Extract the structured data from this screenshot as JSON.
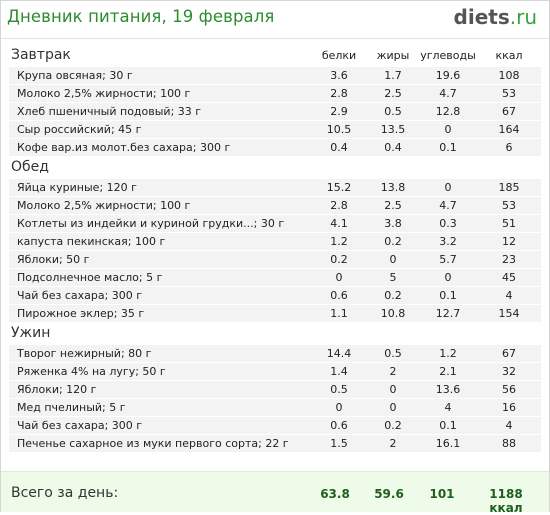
{
  "header": {
    "title": "Дневник питания, 19 февраля",
    "logo_main": "diets",
    "logo_suffix": ".ru"
  },
  "columns": [
    "белки",
    "жиры",
    "углеводы",
    "ккал"
  ],
  "sections": [
    {
      "name": "Завтрак",
      "items": [
        {
          "name": "Крупа овсяная; 30 г",
          "protein": "3.6",
          "fat": "1.7",
          "carbs": "19.6",
          "kcal": "108"
        },
        {
          "name": "Молоко 2,5% жирности; 100 г",
          "protein": "2.8",
          "fat": "2.5",
          "carbs": "4.7",
          "kcal": "53"
        },
        {
          "name": "Хлеб пшеничный подовый; 33 г",
          "protein": "2.9",
          "fat": "0.5",
          "carbs": "12.8",
          "kcal": "67"
        },
        {
          "name": "Сыр российский; 45 г",
          "protein": "10.5",
          "fat": "13.5",
          "carbs": "0",
          "kcal": "164"
        },
        {
          "name": "Кофе вар.из молот.без сахара; 300 г",
          "protein": "0.4",
          "fat": "0.4",
          "carbs": "0.1",
          "kcal": "6"
        }
      ]
    },
    {
      "name": "Обед",
      "items": [
        {
          "name": "Яйца куриные; 120 г",
          "protein": "15.2",
          "fat": "13.8",
          "carbs": "0",
          "kcal": "185"
        },
        {
          "name": "Молоко 2,5% жирности; 100 г",
          "protein": "2.8",
          "fat": "2.5",
          "carbs": "4.7",
          "kcal": "53"
        },
        {
          "name": "Котлеты из индейки и куриной грудки...; 30 г",
          "protein": "4.1",
          "fat": "3.8",
          "carbs": "0.3",
          "kcal": "51"
        },
        {
          "name": "капуста пекинская; 100 г",
          "protein": "1.2",
          "fat": "0.2",
          "carbs": "3.2",
          "kcal": "12"
        },
        {
          "name": "Яблоки; 50 г",
          "protein": "0.2",
          "fat": "0",
          "carbs": "5.7",
          "kcal": "23"
        },
        {
          "name": "Подсолнечное масло; 5 г",
          "protein": "0",
          "fat": "5",
          "carbs": "0",
          "kcal": "45"
        },
        {
          "name": "Чай без сахара; 300 г",
          "protein": "0.6",
          "fat": "0.2",
          "carbs": "0.1",
          "kcal": "4"
        },
        {
          "name": "Пирожное эклер; 35 г",
          "protein": "1.1",
          "fat": "10.8",
          "carbs": "12.7",
          "kcal": "154"
        }
      ]
    },
    {
      "name": "Ужин",
      "items": [
        {
          "name": "Творог нежирный; 80 г",
          "protein": "14.4",
          "fat": "0.5",
          "carbs": "1.2",
          "kcal": "67"
        },
        {
          "name": "Ряженка 4% на лугу; 50 г",
          "protein": "1.4",
          "fat": "2",
          "carbs": "2.1",
          "kcal": "32"
        },
        {
          "name": "Яблоки; 120 г",
          "protein": "0.5",
          "fat": "0",
          "carbs": "13.6",
          "kcal": "56"
        },
        {
          "name": "Мед пчелиный; 5 г",
          "protein": "0",
          "fat": "0",
          "carbs": "4",
          "kcal": "16"
        },
        {
          "name": "Чай без сахара; 300 г",
          "protein": "0.6",
          "fat": "0.2",
          "carbs": "0.1",
          "kcal": "4"
        },
        {
          "name": "Печенье сахарное из муки первого сорта; 22 г",
          "protein": "1.5",
          "fat": "2",
          "carbs": "16.1",
          "kcal": "88"
        }
      ]
    }
  ],
  "totals": {
    "label": "Всего за день:",
    "protein": "63.8",
    "fat": "59.6",
    "carbs": "101",
    "kcal": "1188 ккал"
  }
}
